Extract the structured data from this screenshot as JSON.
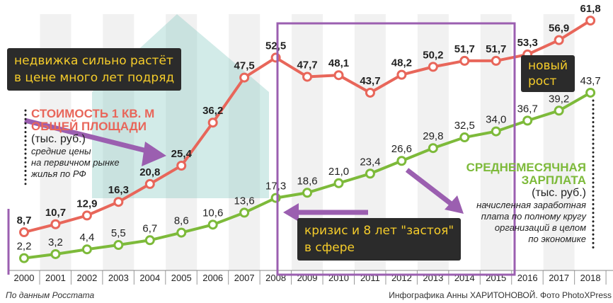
{
  "chart_data": {
    "type": "line",
    "x": [
      "2000",
      "2001",
      "2002",
      "2003",
      "2004",
      "2005",
      "2006",
      "2007",
      "2008",
      "2009",
      "2010",
      "2011",
      "2012",
      "2013",
      "2014",
      "2015",
      "2016",
      "2017",
      "2018"
    ],
    "series": [
      {
        "name": "Стоимость 1 кв. м общей площади",
        "color": "#e8665a",
        "values": [
          8.7,
          10.7,
          12.9,
          16.3,
          20.8,
          25.4,
          36.2,
          47.5,
          52.5,
          47.7,
          48.1,
          43.7,
          48.2,
          50.2,
          51.7,
          51.7,
          53.3,
          56.9,
          61.8
        ],
        "labels": [
          "8,7",
          "10,7",
          "12,9",
          "16,3",
          "20,8",
          "25,4",
          "36,2",
          "47,5",
          "52,5",
          "47,7",
          "48,1",
          "43,7",
          "48,2",
          "50,2",
          "51,7",
          "51,7",
          "53,3",
          "56,9",
          "61,8"
        ]
      },
      {
        "name": "Среднемесячная зарплата",
        "color": "#7dba3a",
        "values": [
          2.2,
          3.2,
          4.4,
          5.5,
          6.7,
          8.6,
          10.6,
          13.6,
          17.3,
          18.6,
          21.0,
          23.4,
          26.6,
          29.8,
          32.5,
          34.0,
          36.7,
          39.2,
          43.7
        ],
        "labels": [
          "2,2",
          "3,2",
          "4,4",
          "5,5",
          "6,7",
          "8,6",
          "10,6",
          "13,6",
          "17,3",
          "18,6",
          "21,0",
          "23,4",
          "26,6",
          "29,8",
          "32,5",
          "34,0",
          "36,7",
          "39,2",
          "43,7"
        ]
      }
    ],
    "legend_price": {
      "title1": "СТОИМОСТЬ 1 КВ. М",
      "title2": "ОБЩЕЙ ПЛОЩАДИ",
      "unit": "(тыс. руб.)",
      "note1": "средние цены",
      "note2": "на первичном рынке",
      "note3": "жилья по РФ"
    },
    "legend_salary": {
      "title1": "СРЕДНЕМЕСЯЧНАЯ",
      "title2": "ЗАРПЛАТА",
      "unit": "(тыс. руб.)",
      "note1": "начисленная заработная",
      "note2": "плата по полному кругу",
      "note3": "организаций в целом",
      "note4": "по экономике"
    },
    "annotations": {
      "a1_line1": "недвижка сильно растёт",
      "a1_line2": "в цене много лет подряд",
      "a2_line1": "кризис и 8 лет \"застоя\"",
      "a2_line2": "в сфере",
      "a3_line1": "новый",
      "a3_line2": "рост"
    },
    "source": "По данным Росстата",
    "credit": "Инфографика Анны ХАРИТОНОВОЙ. Фото PhotoXPress"
  }
}
